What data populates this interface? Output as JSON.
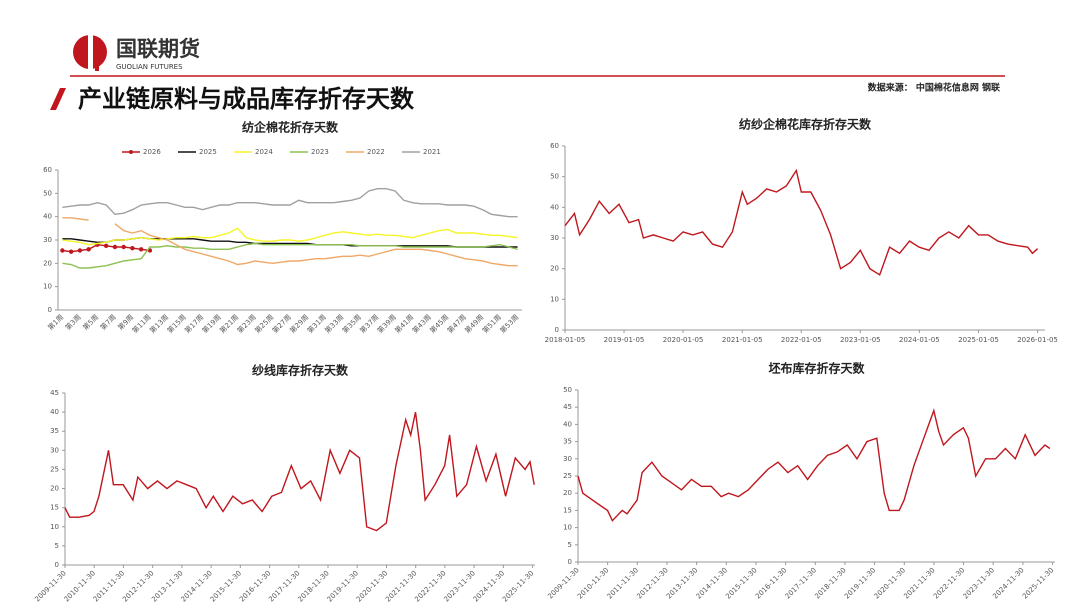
{
  "header": {
    "logo_cn": "国联期货",
    "logo_en": "GUOLIAN FUTURES",
    "title": "产业链原料与成品库存折存天数",
    "source": "数据来源： 中国棉花信息网 钢联"
  },
  "chart_data": [
    {
      "type": "line",
      "title": "纺企棉花折存天数",
      "categories": [
        "第1周",
        null,
        "第3周",
        null,
        "第5周",
        null,
        "第7周",
        null,
        "第9周",
        null,
        "第11周",
        null,
        "第13周",
        null,
        "第15周",
        null,
        "第17周",
        null,
        "第19周",
        null,
        "第21周",
        null,
        "第23周",
        null,
        "第25周",
        null,
        "第27周",
        null,
        "第29周",
        null,
        "第31周",
        null,
        "第33周",
        null,
        "第35周",
        null,
        "第37周",
        null,
        "第39周",
        null,
        "第41周",
        null,
        "第43周",
        null,
        "第45周",
        null,
        "第47周",
        null,
        "第49周",
        null,
        "第51周",
        null,
        "第53周"
      ],
      "ylim": [
        0,
        60
      ],
      "yticks": [
        0,
        10,
        20,
        30,
        40,
        50,
        60
      ],
      "legend": "top",
      "series": [
        {
          "name": "2026",
          "color": "#c0161d",
          "marker": true,
          "values": [
            25.5,
            25,
            25.5,
            26,
            28,
            27.5,
            27,
            27,
            26.5,
            26,
            25.5,
            null,
            null,
            null,
            null,
            null,
            null,
            null,
            null,
            null,
            null,
            null,
            null,
            null,
            null,
            null,
            null,
            null,
            null,
            null,
            null,
            null,
            null,
            null,
            null,
            null,
            null,
            null,
            null,
            null,
            null,
            null,
            null,
            null,
            null,
            null,
            null,
            null,
            null,
            null,
            null,
            null,
            null
          ]
        },
        {
          "name": "2025",
          "color": "#111111",
          "values": [
            30.5,
            30.5,
            30,
            29.5,
            29,
            29,
            30,
            30,
            30.5,
            31,
            30.5,
            30.5,
            30.5,
            30.5,
            30.5,
            30.5,
            30,
            29.5,
            29.5,
            29.5,
            29,
            29,
            28.5,
            28.5,
            28.5,
            28.5,
            28.5,
            28.5,
            28.5,
            28,
            28,
            28,
            28,
            27.5,
            27.5,
            27.5,
            27.5,
            27.5,
            27.5,
            27.5,
            27.5,
            27.5,
            27.5,
            27.5,
            27.5,
            27,
            27,
            27,
            27,
            27,
            27,
            27,
            27
          ]
        },
        {
          "name": "2024",
          "color": "#f5f528",
          "values": [
            30,
            29.5,
            29,
            28,
            28.5,
            29,
            30,
            30,
            30.5,
            31,
            30.5,
            30,
            30.5,
            31,
            31,
            31.5,
            31,
            31,
            32,
            33,
            35,
            31,
            30,
            29.5,
            29.5,
            30,
            30,
            29.5,
            30,
            31,
            32,
            33,
            33.5,
            33,
            32.5,
            32,
            32.5,
            32,
            32,
            31.5,
            31,
            32,
            33,
            34,
            34.5,
            33,
            33,
            33,
            32.5,
            32,
            32,
            31.5,
            31
          ]
        },
        {
          "name": "2023",
          "color": "#8cc152",
          "values": [
            20,
            19.5,
            18,
            18,
            18.5,
            19,
            20,
            21,
            21.5,
            22,
            27,
            27,
            27.5,
            27,
            27,
            26.5,
            26.5,
            26,
            26,
            26,
            27,
            28,
            28.5,
            28,
            28,
            28,
            28,
            28,
            28,
            28,
            28,
            28,
            28,
            28,
            27.5,
            27.5,
            27.5,
            27.5,
            27.5,
            27,
            27,
            27,
            27,
            27,
            27,
            27,
            27,
            27,
            27,
            27.5,
            28,
            27,
            26
          ]
        },
        {
          "name": "2022",
          "color": "#f0a868",
          "values": [
            39.5,
            39.5,
            39,
            38.5,
            null,
            null,
            37,
            34,
            33,
            34,
            32,
            31,
            30,
            28,
            26,
            25,
            24,
            23,
            22,
            21,
            19.5,
            20,
            21,
            20.5,
            20,
            20.5,
            21,
            21,
            21.5,
            22,
            22,
            22.5,
            23,
            23,
            23.5,
            23,
            24,
            25,
            26,
            26,
            26,
            26,
            25.5,
            25,
            24,
            23,
            22,
            21.5,
            21,
            20,
            19.5,
            19,
            19
          ]
        },
        {
          "name": "2021",
          "color": "#a0a0a0",
          "values": [
            44,
            44.5,
            45,
            45,
            46,
            45,
            41,
            41.5,
            43,
            45,
            45.5,
            46,
            46,
            45,
            44,
            44,
            43,
            44,
            45,
            45,
            46,
            46,
            46,
            45.5,
            45,
            45,
            45,
            47,
            46,
            46,
            46,
            46,
            46.5,
            47,
            48,
            51,
            52,
            52,
            51,
            47,
            46,
            45.5,
            45.5,
            45.5,
            45,
            45,
            45,
            44.5,
            43,
            41,
            40.5,
            40,
            40
          ]
        }
      ]
    },
    {
      "type": "line",
      "title": "纺纱企棉花库存折存天数",
      "xlim": [
        "2018-01-05",
        "2026-02-20"
      ],
      "xticks": [
        "2018-01-05",
        "2019-01-05",
        "2020-01-05",
        "2021-01-05",
        "2022-01-05",
        "2023-01-05",
        "2024-01-05",
        "2025-01-05",
        "2026-01-05"
      ],
      "ylim": [
        0,
        60
      ],
      "yticks": [
        0,
        10,
        20,
        30,
        40,
        50,
        60
      ],
      "x": [
        "2018-01-05",
        "2018-03-05",
        "2018-04-05",
        "2018-06-05",
        "2018-08-05",
        "2018-10-05",
        "2018-12-05",
        "2019-02-05",
        "2019-04-05",
        "2019-05-05",
        "2019-07-05",
        "2019-09-05",
        "2019-11-05",
        "2020-01-05",
        "2020-03-05",
        "2020-05-05",
        "2020-07-05",
        "2020-09-05",
        "2020-11-05",
        "2021-01-05",
        "2021-02-05",
        "2021-04-05",
        "2021-06-05",
        "2021-08-05",
        "2021-10-05",
        "2021-12-05",
        "2022-01-05",
        "2022-03-05",
        "2022-05-05",
        "2022-07-05",
        "2022-09-05",
        "2022-11-05",
        "2023-01-05",
        "2023-03-05",
        "2023-05-05",
        "2023-07-05",
        "2023-09-05",
        "2023-11-05",
        "2024-01-05",
        "2024-03-05",
        "2024-05-05",
        "2024-07-05",
        "2024-09-05",
        "2024-11-05",
        "2025-01-05",
        "2025-03-05",
        "2025-05-05",
        "2025-07-05",
        "2025-09-05",
        "2025-11-05",
        "2025-12-05",
        "2026-01-05"
      ],
      "series": [
        {
          "name": null,
          "color": "#c0161d",
          "values": [
            34,
            38,
            31,
            36,
            42,
            38,
            41,
            35,
            36,
            30,
            31,
            30,
            29,
            32,
            31,
            32,
            28,
            27,
            32,
            45,
            41,
            43,
            46,
            45,
            47,
            52,
            45,
            45,
            39,
            31,
            20,
            22,
            26,
            20,
            18,
            27,
            25,
            29,
            27,
            26,
            30,
            32,
            30,
            34,
            31,
            31,
            29,
            28,
            27.5,
            27,
            25,
            26.5
          ]
        }
      ]
    },
    {
      "type": "line",
      "title": "纱线库存折存天数",
      "xlim": [
        "2009-11-30",
        "2025-12-30"
      ],
      "xticks": [
        "2009-11-30",
        "2010-11-30",
        "2011-11-30",
        "2012-11-30",
        "2013-11-30",
        "2014-11-30",
        "2015-11-30",
        "2016-11-30",
        "2017-11-30",
        "2018-11-30",
        "2019-11-30",
        "2020-11-30",
        "2021-11-30",
        "2022-11-30",
        "2023-11-30",
        "2024-11-30",
        "2025-11-30"
      ],
      "ylim": [
        0,
        45
      ],
      "yticks": [
        0,
        5,
        10,
        15,
        20,
        25,
        30,
        35,
        40,
        45
      ],
      "x": [
        "2009-11-30",
        "2010-01-28",
        "2010-05-28",
        "2010-09-28",
        "2010-11-28",
        "2011-01-28",
        "2011-05-28",
        "2011-07-28",
        "2011-11-28",
        "2012-03-28",
        "2012-05-28",
        "2012-09-28",
        "2013-01-28",
        "2013-05-28",
        "2013-09-28",
        "2014-01-28",
        "2014-05-28",
        "2014-09-28",
        "2014-12-28",
        "2015-04-28",
        "2015-08-28",
        "2015-12-28",
        "2016-04-28",
        "2016-08-28",
        "2016-12-28",
        "2017-04-28",
        "2017-08-28",
        "2017-12-28",
        "2018-04-28",
        "2018-08-28",
        "2018-12-28",
        "2019-04-28",
        "2019-08-28",
        "2019-12-28",
        "2020-03-28",
        "2020-07-28",
        "2020-11-28",
        "2021-03-28",
        "2021-07-28",
        "2021-09-28",
        "2021-11-28",
        "2022-01-28",
        "2022-03-28",
        "2022-07-28",
        "2022-11-28",
        "2023-01-28",
        "2023-04-28",
        "2023-08-28",
        "2023-12-28",
        "2024-04-28",
        "2024-08-28",
        "2024-12-28",
        "2025-04-28",
        "2025-08-28",
        "2025-10-28",
        "2025-12-20"
      ],
      "series": [
        {
          "name": null,
          "color": "#c0161d",
          "values": [
            15,
            12.5,
            12.5,
            13,
            14,
            18,
            30,
            21,
            21,
            17,
            23,
            20,
            22,
            20,
            22,
            21,
            20,
            15,
            18,
            14,
            18,
            16,
            17,
            14,
            18,
            19,
            26,
            20,
            22,
            17,
            30,
            24,
            30,
            28,
            10,
            9,
            11,
            26,
            38,
            34,
            40,
            30,
            17,
            21,
            26,
            34,
            18,
            21,
            31,
            22,
            29,
            18,
            28,
            25,
            27,
            21
          ]
        }
      ]
    },
    {
      "type": "line",
      "title": "坯布库存折存天数",
      "xlim": [
        "2009-11-30",
        "2025-12-30"
      ],
      "xticks": [
        "2009-11-30",
        "2010-11-30",
        "2011-11-30",
        "2012-11-30",
        "2013-11-30",
        "2014-11-30",
        "2015-11-30",
        "2016-11-30",
        "2017-11-30",
        "2018-11-30",
        "2019-11-30",
        "2020-11-30",
        "2021-11-30",
        "2022-11-30",
        "2023-11-30",
        "2024-11-30",
        "2025-11-30"
      ],
      "ylim": [
        0,
        50
      ],
      "yticks": [
        0,
        5,
        10,
        15,
        20,
        25,
        30,
        35,
        40,
        45,
        50
      ],
      "x": [
        "2009-11-30",
        "2010-01-28",
        "2010-05-28",
        "2010-09-28",
        "2010-11-28",
        "2011-01-28",
        "2011-05-28",
        "2011-07-28",
        "2011-11-28",
        "2012-01-28",
        "2012-05-28",
        "2012-09-28",
        "2013-01-28",
        "2013-05-28",
        "2013-09-28",
        "2014-01-28",
        "2014-05-28",
        "2014-09-28",
        "2014-12-28",
        "2015-04-28",
        "2015-08-28",
        "2015-12-28",
        "2016-04-28",
        "2016-08-28",
        "2016-12-28",
        "2017-04-28",
        "2017-08-28",
        "2017-12-28",
        "2018-04-28",
        "2018-08-28",
        "2018-12-28",
        "2019-04-28",
        "2019-08-28",
        "2019-12-28",
        "2020-03-28",
        "2020-05-28",
        "2020-09-28",
        "2020-11-28",
        "2021-03-28",
        "2021-07-28",
        "2021-09-28",
        "2021-11-28",
        "2022-01-28",
        "2022-03-28",
        "2022-07-28",
        "2022-11-28",
        "2023-01-28",
        "2023-04-28",
        "2023-08-28",
        "2023-12-28",
        "2024-04-28",
        "2024-08-28",
        "2024-12-28",
        "2025-04-28",
        "2025-08-28",
        "2025-10-28"
      ],
      "series": [
        {
          "name": null,
          "color": "#c0161d",
          "values": [
            25,
            20,
            18,
            16,
            15,
            12,
            15,
            14,
            18,
            26,
            29,
            25,
            23,
            21,
            24,
            22,
            22,
            19,
            20,
            19,
            21,
            24,
            27,
            29,
            26,
            28,
            24,
            28,
            31,
            32,
            34,
            30,
            35,
            36,
            20,
            15,
            15,
            18,
            28,
            36,
            40,
            44,
            38,
            34,
            37,
            39,
            36,
            25,
            30,
            30,
            33,
            30,
            37,
            31,
            34,
            33
          ]
        }
      ]
    }
  ]
}
